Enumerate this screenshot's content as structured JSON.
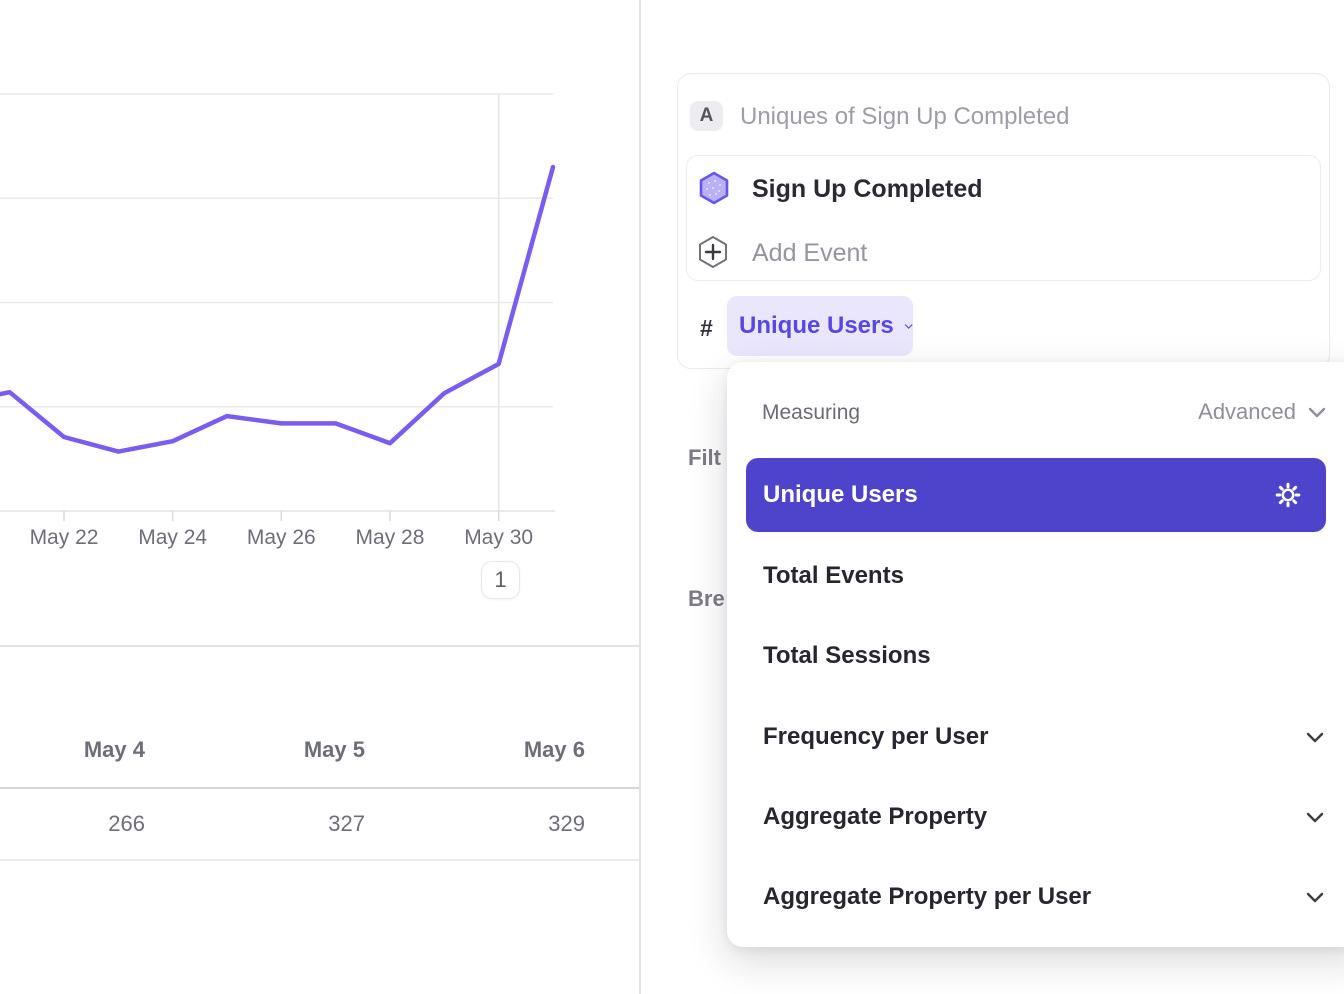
{
  "chart_data": {
    "type": "line",
    "title": "",
    "xlabel": "",
    "ylabel": "",
    "series": [
      {
        "name": "Sign Up Completed — Unique Users",
        "x_days": [
          20.82,
          21,
          22,
          23,
          24,
          25,
          26,
          27,
          28,
          29,
          30,
          31
        ],
        "values": [
          112,
          114,
          71,
          57,
          67,
          91,
          84,
          84,
          65,
          113,
          141,
          330
        ]
      }
    ],
    "x_ticks": [
      {
        "day": 22,
        "label": "May 22"
      },
      {
        "day": 24,
        "label": "May 24"
      },
      {
        "day": 26,
        "label": "May 26"
      },
      {
        "day": 28,
        "label": "May 28"
      },
      {
        "day": 30,
        "label": "May 30"
      }
    ],
    "ylim": [
      0,
      400
    ],
    "gridline_values": [
      100,
      200,
      300,
      400
    ],
    "grid": "horizontal",
    "legend_position": "none",
    "annotation": {
      "day": 30,
      "label": "1"
    },
    "line_color": "#7b5cf0",
    "grid_color": "#eaeaee",
    "axis_color": "#e4e4e7",
    "tick_label_color": "#6e6e78"
  },
  "table": {
    "headers": [
      "May 4",
      "May 5",
      "May 6"
    ],
    "values": [
      "266",
      "327",
      "329"
    ]
  },
  "metric_panel": {
    "formula_label": "A",
    "title": "Uniques of Sign Up Completed",
    "event_name": "Sign Up Completed",
    "add_event_label": "Add Event",
    "hash_symbol": "#",
    "measurement_value": "Unique Users"
  },
  "left_rail_partial": {
    "filters_label_partial": "Filt",
    "breakdowns_label_partial": "Bre"
  },
  "dropdown": {
    "header_label": "Measuring",
    "mode_label": "Advanced",
    "items": [
      {
        "label": "Unique Users",
        "selected": true,
        "has_settings_gear": true
      },
      {
        "label": "Total Events",
        "selected": false
      },
      {
        "label": "Total Sessions",
        "selected": false
      },
      {
        "label": "Frequency per User",
        "selected": false,
        "expandable": true
      },
      {
        "label": "Aggregate Property",
        "selected": false,
        "expandable": true
      },
      {
        "label": "Aggregate Property per User",
        "selected": false,
        "expandable": true
      }
    ]
  },
  "annotation_badge": "1",
  "colors": {
    "chart_line": "#7b5cf0",
    "selected_item_bg": "#4e44cb",
    "pill_bg": "#eae7fc",
    "pill_text": "#5847e5",
    "event_hexagon_fill": "#b9b0f5",
    "event_hexagon_stroke": "#6456ee"
  }
}
